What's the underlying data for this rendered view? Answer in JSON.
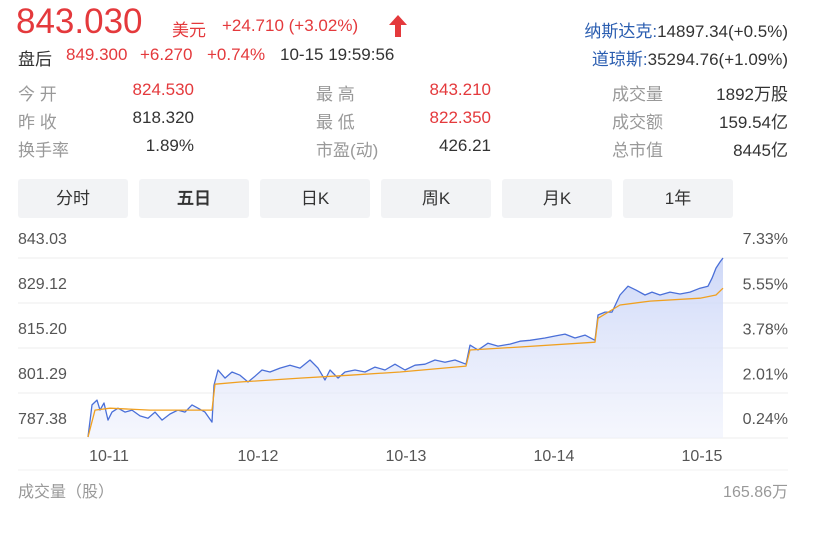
{
  "quote": {
    "price": "843.030",
    "currency": "美元",
    "change": "+24.710 (+3.02%)"
  },
  "after_hours": {
    "label": "盘后",
    "price": "849.300",
    "change": "+6.270",
    "percent": "+0.74%",
    "time": "10-15 19:59:56"
  },
  "indices": [
    {
      "name": "纳斯达克:",
      "value": "14897.34(+0.5%)"
    },
    {
      "name": "道琼斯:",
      "value": "35294.76(+1.09%)"
    }
  ],
  "stats": [
    [
      {
        "label": "今 开",
        "value": "824.530",
        "color": "#e4393c"
      },
      {
        "label": "最 高",
        "value": "843.210",
        "color": "#e4393c"
      },
      {
        "label": "成交量",
        "value": "1892万股",
        "color": "#333333"
      }
    ],
    [
      {
        "label": "昨 收",
        "value": "818.320",
        "color": "#333333"
      },
      {
        "label": "最 低",
        "value": "822.350",
        "color": "#e4393c"
      },
      {
        "label": "成交额",
        "value": "159.54亿",
        "color": "#333333"
      }
    ],
    [
      {
        "label": "换手率",
        "value": "1.89%",
        "color": "#333333"
      },
      {
        "label": "市盈(动)",
        "value": "426.21",
        "color": "#333333"
      },
      {
        "label": "总市值",
        "value": "8445亿",
        "color": "#333333"
      }
    ]
  ],
  "tabs": {
    "items": [
      "分时",
      "五日",
      "日K",
      "周K",
      "月K",
      "1年"
    ],
    "active": 1
  },
  "chart_data": {
    "type": "line",
    "xlim": [
      0,
      635
    ],
    "xticks": [
      {
        "value": 21,
        "label": "10-11"
      },
      {
        "value": 170,
        "label": "10-12"
      },
      {
        "value": 318,
        "label": "10-13"
      },
      {
        "value": 466,
        "label": "10-14"
      },
      {
        "value": 614,
        "label": "10-15"
      }
    ],
    "ylim": [
      787.38,
      843.03
    ],
    "yticks": [
      843.03,
      829.12,
      {
        "value": 815.2,
        "label": "815.20"
      },
      801.29,
      787.38
    ],
    "y2lim": [
      0.24,
      7.33
    ],
    "y2ticks": [
      {
        "value": 7.33,
        "label": "7.33%"
      },
      {
        "value": 5.55,
        "label": "5.55%"
      },
      {
        "value": 3.78,
        "label": "3.78%"
      },
      {
        "value": 2.01,
        "label": "2.01%"
      },
      {
        "value": 0.24,
        "label": "0.24%"
      }
    ],
    "grid": true,
    "series": [
      {
        "color": "#4a6fd8",
        "area": "#dfe5fa",
        "x": [
          0,
          4,
          9,
          12,
          16,
          20,
          24,
          30,
          37,
          44,
          52,
          60,
          67,
          74,
          82,
          90,
          97,
          104,
          110,
          117,
          124,
          126,
          130,
          137,
          144,
          152,
          160,
          167,
          174,
          182,
          192,
          202,
          212,
          222,
          230,
          237,
          242,
          250,
          257,
          267,
          277,
          287,
          297,
          307,
          317,
          327,
          337,
          347,
          357,
          367,
          378,
          382,
          390,
          400,
          410,
          422,
          432,
          442,
          457,
          467,
          477,
          487,
          497,
          507,
          510,
          517,
          524,
          532,
          540,
          548,
          557,
          564,
          572,
          582,
          592,
          602,
          612,
          620,
          624,
          628,
          632,
          635
        ],
        "values": [
          787.7,
          797.6,
          799.1,
          796.0,
          798.2,
          792.9,
          795.4,
          796.6,
          795.4,
          796.0,
          794.2,
          793.5,
          795.4,
          792.9,
          794.8,
          796.0,
          795.4,
          797.6,
          796.6,
          795.4,
          792.3,
          803.7,
          808.4,
          805.9,
          807.8,
          806.8,
          804.7,
          806.5,
          808.4,
          807.8,
          809.0,
          809.9,
          809.0,
          811.5,
          809.0,
          805.3,
          808.4,
          805.9,
          807.8,
          808.4,
          807.8,
          809.3,
          808.4,
          810.2,
          808.4,
          809.9,
          810.2,
          811.5,
          810.8,
          811.5,
          810.2,
          816.1,
          814.6,
          816.7,
          815.8,
          816.4,
          817.3,
          817.6,
          818.3,
          818.9,
          819.5,
          818.3,
          819.2,
          817.6,
          825.4,
          826.3,
          826.3,
          831.6,
          834.3,
          833.1,
          831.6,
          832.5,
          831.6,
          832.5,
          831.9,
          832.5,
          833.7,
          834.3,
          836.8,
          839.9,
          841.8,
          843.03
        ]
      },
      {
        "color": "#f0a020",
        "x": [
          0,
          7,
          22,
          62,
          112,
          124,
          127,
          152,
          212,
          262,
          312,
          378,
          382,
          432,
          507,
          510,
          532,
          562,
          612,
          628,
          635
        ],
        "values": [
          787.7,
          796.0,
          796.6,
          796.0,
          796.0,
          796.0,
          804.0,
          804.7,
          805.9,
          806.8,
          807.8,
          809.6,
          814.6,
          815.5,
          817.0,
          824.4,
          828.5,
          829.7,
          830.6,
          831.6,
          833.7
        ]
      }
    ]
  },
  "volume": {
    "label": "成交量（股）",
    "max_label": "165.86万"
  }
}
